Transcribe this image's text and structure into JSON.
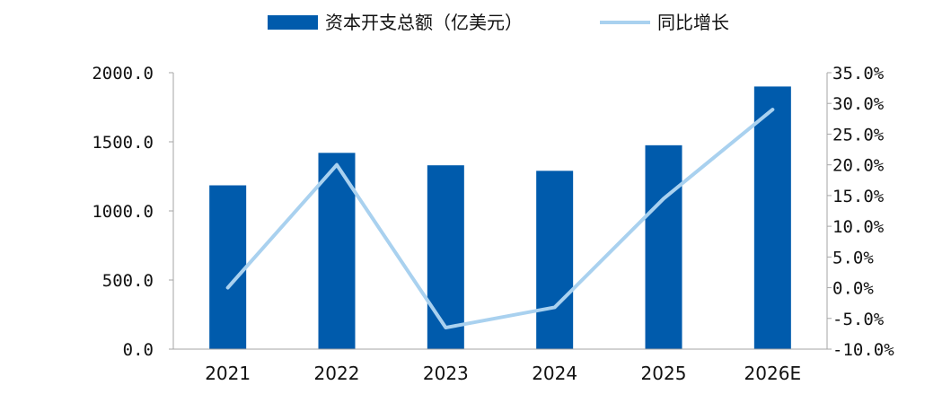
{
  "chart_data": {
    "type": "bar",
    "categories": [
      "2021",
      "2022",
      "2023",
      "2024",
      "2025",
      "2026E"
    ],
    "series": [
      {
        "name": "资本开支总额（亿美元）",
        "kind": "bar",
        "axis": "left",
        "color": "#005bac",
        "values": [
          1185,
          1420,
          1330,
          1290,
          1475,
          1900
        ]
      },
      {
        "name": "同比增长",
        "kind": "line",
        "axis": "right",
        "color": "#a9d1ef",
        "values": [
          0.0,
          20.0,
          -6.5,
          -3.2,
          14.5,
          29.0
        ]
      }
    ],
    "y_left": {
      "ylim": [
        0,
        2000
      ],
      "ticks": [
        0,
        500,
        1000,
        1500,
        2000
      ],
      "tick_labels": [
        "0.0",
        "500.0",
        "1000.0",
        "1500.0",
        "2000.0"
      ]
    },
    "y_right": {
      "ylim": [
        -10,
        35
      ],
      "ticks": [
        -10,
        -5,
        0,
        5,
        10,
        15,
        20,
        25,
        30,
        35
      ],
      "tick_labels": [
        "-10.0%",
        "-5.0%",
        "0.0%",
        "5.0%",
        "10.0%",
        "15.0%",
        "20.0%",
        "25.0%",
        "30.0%",
        "35.0%"
      ]
    },
    "legend_position": "top-center",
    "grid": false
  }
}
